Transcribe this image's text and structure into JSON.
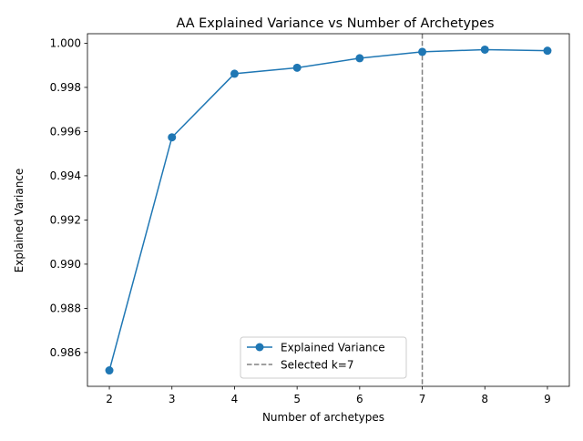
{
  "chart_data": {
    "type": "line",
    "title": "AA Explained Variance vs Number of Archetypes",
    "xlabel": "Number of archetypes",
    "ylabel": "Explained Variance",
    "x": [
      2,
      3,
      4,
      5,
      6,
      7,
      8,
      9
    ],
    "series": [
      {
        "name": "Explained Variance",
        "values": [
          0.98519,
          0.99574,
          0.99862,
          0.99889,
          0.99932,
          0.99961,
          0.99971,
          0.99966
        ],
        "color": "#1f77b4",
        "marker": "circle"
      }
    ],
    "reference_lines": [
      {
        "name": "Selected k=7",
        "x": 7,
        "color": "#808080",
        "style": "dashed"
      }
    ],
    "xticks": [
      "2",
      "3",
      "4",
      "5",
      "6",
      "7",
      "8",
      "9"
    ],
    "yticks": [
      "0.986",
      "0.988",
      "0.990",
      "0.992",
      "0.994",
      "0.996",
      "0.998",
      "1.000"
    ],
    "xlim": [
      1.65,
      9.35
    ],
    "ylim": [
      0.98447,
      1.00043
    ],
    "grid": false,
    "legend_position": "lower-center"
  }
}
